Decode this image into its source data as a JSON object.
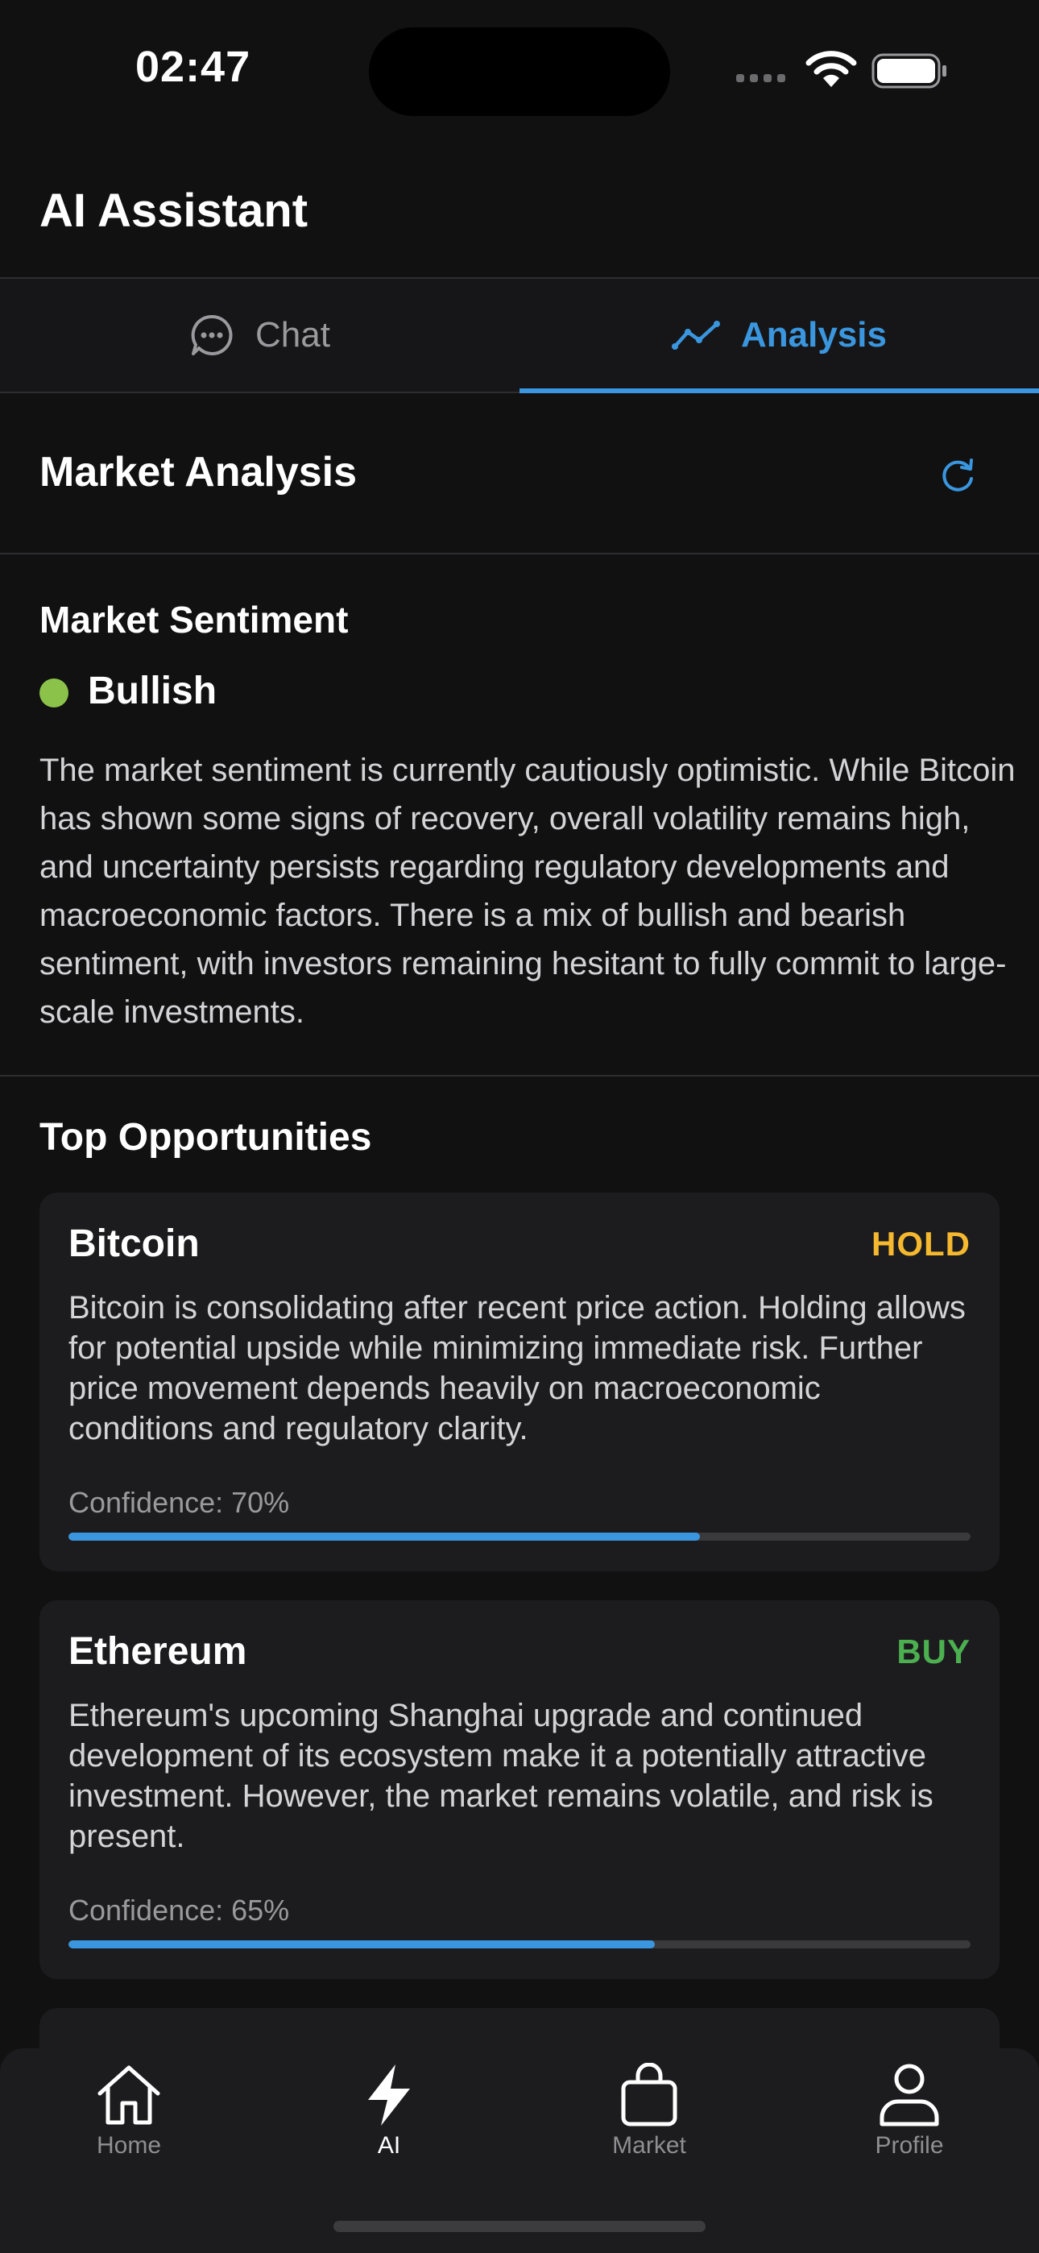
{
  "status_bar": {
    "time": "02:47"
  },
  "header": {
    "title": "AI Assistant"
  },
  "tabs": [
    {
      "label": "Chat",
      "active": false
    },
    {
      "label": "Analysis",
      "active": true
    }
  ],
  "section": {
    "title": "Market Analysis"
  },
  "sentiment": {
    "heading": "Market Sentiment",
    "value": "Bullish",
    "indicator_color": "#8bc34a",
    "description": "The market sentiment is currently cautiously optimistic. While Bitcoin has shown some signs of recovery, overall volatility remains high, and uncertainty persists regarding regulatory developments and macroeconomic factors.  There is a mix of bullish and bearish sentiment, with investors remaining hesitant to fully commit to large-scale investments."
  },
  "opportunities": {
    "heading": "Top Opportunities",
    "items": [
      {
        "name": "Bitcoin",
        "action": "HOLD",
        "action_color": "#f5b82e",
        "description": "Bitcoin is consolidating after recent price action.  Holding allows for potential upside while minimizing immediate risk.  Further price movement depends heavily on macroeconomic conditions and regulatory clarity.",
        "confidence_label": "Confidence: 70%",
        "confidence": 0.7
      },
      {
        "name": "Ethereum",
        "action": "BUY",
        "action_color": "#4caf50",
        "description": "Ethereum's upcoming Shanghai upgrade and continued development of its ecosystem make it a potentially attractive investment. However, the market remains volatile, and risk is present.",
        "confidence_label": "Confidence: 65%",
        "confidence": 0.65
      }
    ]
  },
  "tabbar": {
    "items": [
      {
        "label": "Home",
        "icon": "home-icon",
        "active": false
      },
      {
        "label": "AI",
        "icon": "bolt-icon",
        "active": true
      },
      {
        "label": "Market",
        "icon": "bag-icon",
        "active": false
      },
      {
        "label": "Profile",
        "icon": "person-icon",
        "active": false
      }
    ]
  },
  "colors": {
    "accent": "#3a96de",
    "background": "#111112",
    "card": "#1c1c1e"
  }
}
